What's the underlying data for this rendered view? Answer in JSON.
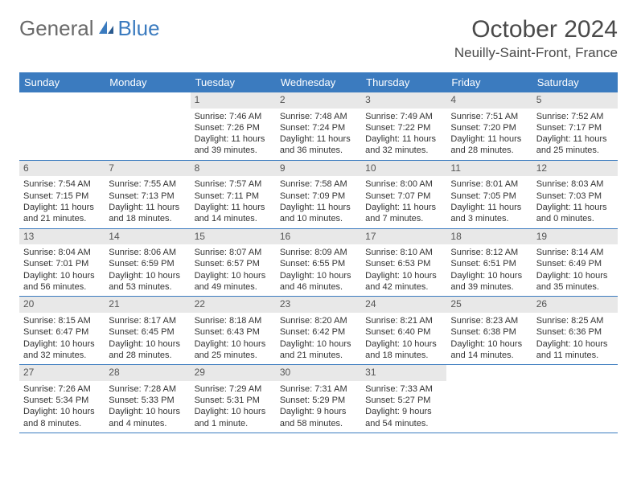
{
  "logo": {
    "part1": "General",
    "part2": "Blue"
  },
  "title": "October 2024",
  "location": "Neuilly-Saint-Front, France",
  "colors": {
    "header_bg": "#3b7bbf",
    "header_text": "#ffffff",
    "daynum_bg": "#e8e8e8",
    "border": "#3b7bbf",
    "page_bg": "#ffffff",
    "text": "#333333",
    "logo_grey": "#6a6a6a",
    "logo_blue": "#3b7bbf"
  },
  "weekdays": [
    "Sunday",
    "Monday",
    "Tuesday",
    "Wednesday",
    "Thursday",
    "Friday",
    "Saturday"
  ],
  "weeks": [
    [
      null,
      null,
      {
        "n": "1",
        "sunrise": "Sunrise: 7:46 AM",
        "sunset": "Sunset: 7:26 PM",
        "daylight1": "Daylight: 11 hours",
        "daylight2": "and 39 minutes."
      },
      {
        "n": "2",
        "sunrise": "Sunrise: 7:48 AM",
        "sunset": "Sunset: 7:24 PM",
        "daylight1": "Daylight: 11 hours",
        "daylight2": "and 36 minutes."
      },
      {
        "n": "3",
        "sunrise": "Sunrise: 7:49 AM",
        "sunset": "Sunset: 7:22 PM",
        "daylight1": "Daylight: 11 hours",
        "daylight2": "and 32 minutes."
      },
      {
        "n": "4",
        "sunrise": "Sunrise: 7:51 AM",
        "sunset": "Sunset: 7:20 PM",
        "daylight1": "Daylight: 11 hours",
        "daylight2": "and 28 minutes."
      },
      {
        "n": "5",
        "sunrise": "Sunrise: 7:52 AM",
        "sunset": "Sunset: 7:17 PM",
        "daylight1": "Daylight: 11 hours",
        "daylight2": "and 25 minutes."
      }
    ],
    [
      {
        "n": "6",
        "sunrise": "Sunrise: 7:54 AM",
        "sunset": "Sunset: 7:15 PM",
        "daylight1": "Daylight: 11 hours",
        "daylight2": "and 21 minutes."
      },
      {
        "n": "7",
        "sunrise": "Sunrise: 7:55 AM",
        "sunset": "Sunset: 7:13 PM",
        "daylight1": "Daylight: 11 hours",
        "daylight2": "and 18 minutes."
      },
      {
        "n": "8",
        "sunrise": "Sunrise: 7:57 AM",
        "sunset": "Sunset: 7:11 PM",
        "daylight1": "Daylight: 11 hours",
        "daylight2": "and 14 minutes."
      },
      {
        "n": "9",
        "sunrise": "Sunrise: 7:58 AM",
        "sunset": "Sunset: 7:09 PM",
        "daylight1": "Daylight: 11 hours",
        "daylight2": "and 10 minutes."
      },
      {
        "n": "10",
        "sunrise": "Sunrise: 8:00 AM",
        "sunset": "Sunset: 7:07 PM",
        "daylight1": "Daylight: 11 hours",
        "daylight2": "and 7 minutes."
      },
      {
        "n": "11",
        "sunrise": "Sunrise: 8:01 AM",
        "sunset": "Sunset: 7:05 PM",
        "daylight1": "Daylight: 11 hours",
        "daylight2": "and 3 minutes."
      },
      {
        "n": "12",
        "sunrise": "Sunrise: 8:03 AM",
        "sunset": "Sunset: 7:03 PM",
        "daylight1": "Daylight: 11 hours",
        "daylight2": "and 0 minutes."
      }
    ],
    [
      {
        "n": "13",
        "sunrise": "Sunrise: 8:04 AM",
        "sunset": "Sunset: 7:01 PM",
        "daylight1": "Daylight: 10 hours",
        "daylight2": "and 56 minutes."
      },
      {
        "n": "14",
        "sunrise": "Sunrise: 8:06 AM",
        "sunset": "Sunset: 6:59 PM",
        "daylight1": "Daylight: 10 hours",
        "daylight2": "and 53 minutes."
      },
      {
        "n": "15",
        "sunrise": "Sunrise: 8:07 AM",
        "sunset": "Sunset: 6:57 PM",
        "daylight1": "Daylight: 10 hours",
        "daylight2": "and 49 minutes."
      },
      {
        "n": "16",
        "sunrise": "Sunrise: 8:09 AM",
        "sunset": "Sunset: 6:55 PM",
        "daylight1": "Daylight: 10 hours",
        "daylight2": "and 46 minutes."
      },
      {
        "n": "17",
        "sunrise": "Sunrise: 8:10 AM",
        "sunset": "Sunset: 6:53 PM",
        "daylight1": "Daylight: 10 hours",
        "daylight2": "and 42 minutes."
      },
      {
        "n": "18",
        "sunrise": "Sunrise: 8:12 AM",
        "sunset": "Sunset: 6:51 PM",
        "daylight1": "Daylight: 10 hours",
        "daylight2": "and 39 minutes."
      },
      {
        "n": "19",
        "sunrise": "Sunrise: 8:14 AM",
        "sunset": "Sunset: 6:49 PM",
        "daylight1": "Daylight: 10 hours",
        "daylight2": "and 35 minutes."
      }
    ],
    [
      {
        "n": "20",
        "sunrise": "Sunrise: 8:15 AM",
        "sunset": "Sunset: 6:47 PM",
        "daylight1": "Daylight: 10 hours",
        "daylight2": "and 32 minutes."
      },
      {
        "n": "21",
        "sunrise": "Sunrise: 8:17 AM",
        "sunset": "Sunset: 6:45 PM",
        "daylight1": "Daylight: 10 hours",
        "daylight2": "and 28 minutes."
      },
      {
        "n": "22",
        "sunrise": "Sunrise: 8:18 AM",
        "sunset": "Sunset: 6:43 PM",
        "daylight1": "Daylight: 10 hours",
        "daylight2": "and 25 minutes."
      },
      {
        "n": "23",
        "sunrise": "Sunrise: 8:20 AM",
        "sunset": "Sunset: 6:42 PM",
        "daylight1": "Daylight: 10 hours",
        "daylight2": "and 21 minutes."
      },
      {
        "n": "24",
        "sunrise": "Sunrise: 8:21 AM",
        "sunset": "Sunset: 6:40 PM",
        "daylight1": "Daylight: 10 hours",
        "daylight2": "and 18 minutes."
      },
      {
        "n": "25",
        "sunrise": "Sunrise: 8:23 AM",
        "sunset": "Sunset: 6:38 PM",
        "daylight1": "Daylight: 10 hours",
        "daylight2": "and 14 minutes."
      },
      {
        "n": "26",
        "sunrise": "Sunrise: 8:25 AM",
        "sunset": "Sunset: 6:36 PM",
        "daylight1": "Daylight: 10 hours",
        "daylight2": "and 11 minutes."
      }
    ],
    [
      {
        "n": "27",
        "sunrise": "Sunrise: 7:26 AM",
        "sunset": "Sunset: 5:34 PM",
        "daylight1": "Daylight: 10 hours",
        "daylight2": "and 8 minutes."
      },
      {
        "n": "28",
        "sunrise": "Sunrise: 7:28 AM",
        "sunset": "Sunset: 5:33 PM",
        "daylight1": "Daylight: 10 hours",
        "daylight2": "and 4 minutes."
      },
      {
        "n": "29",
        "sunrise": "Sunrise: 7:29 AM",
        "sunset": "Sunset: 5:31 PM",
        "daylight1": "Daylight: 10 hours",
        "daylight2": "and 1 minute."
      },
      {
        "n": "30",
        "sunrise": "Sunrise: 7:31 AM",
        "sunset": "Sunset: 5:29 PM",
        "daylight1": "Daylight: 9 hours",
        "daylight2": "and 58 minutes."
      },
      {
        "n": "31",
        "sunrise": "Sunrise: 7:33 AM",
        "sunset": "Sunset: 5:27 PM",
        "daylight1": "Daylight: 9 hours",
        "daylight2": "and 54 minutes."
      },
      null,
      null
    ]
  ]
}
